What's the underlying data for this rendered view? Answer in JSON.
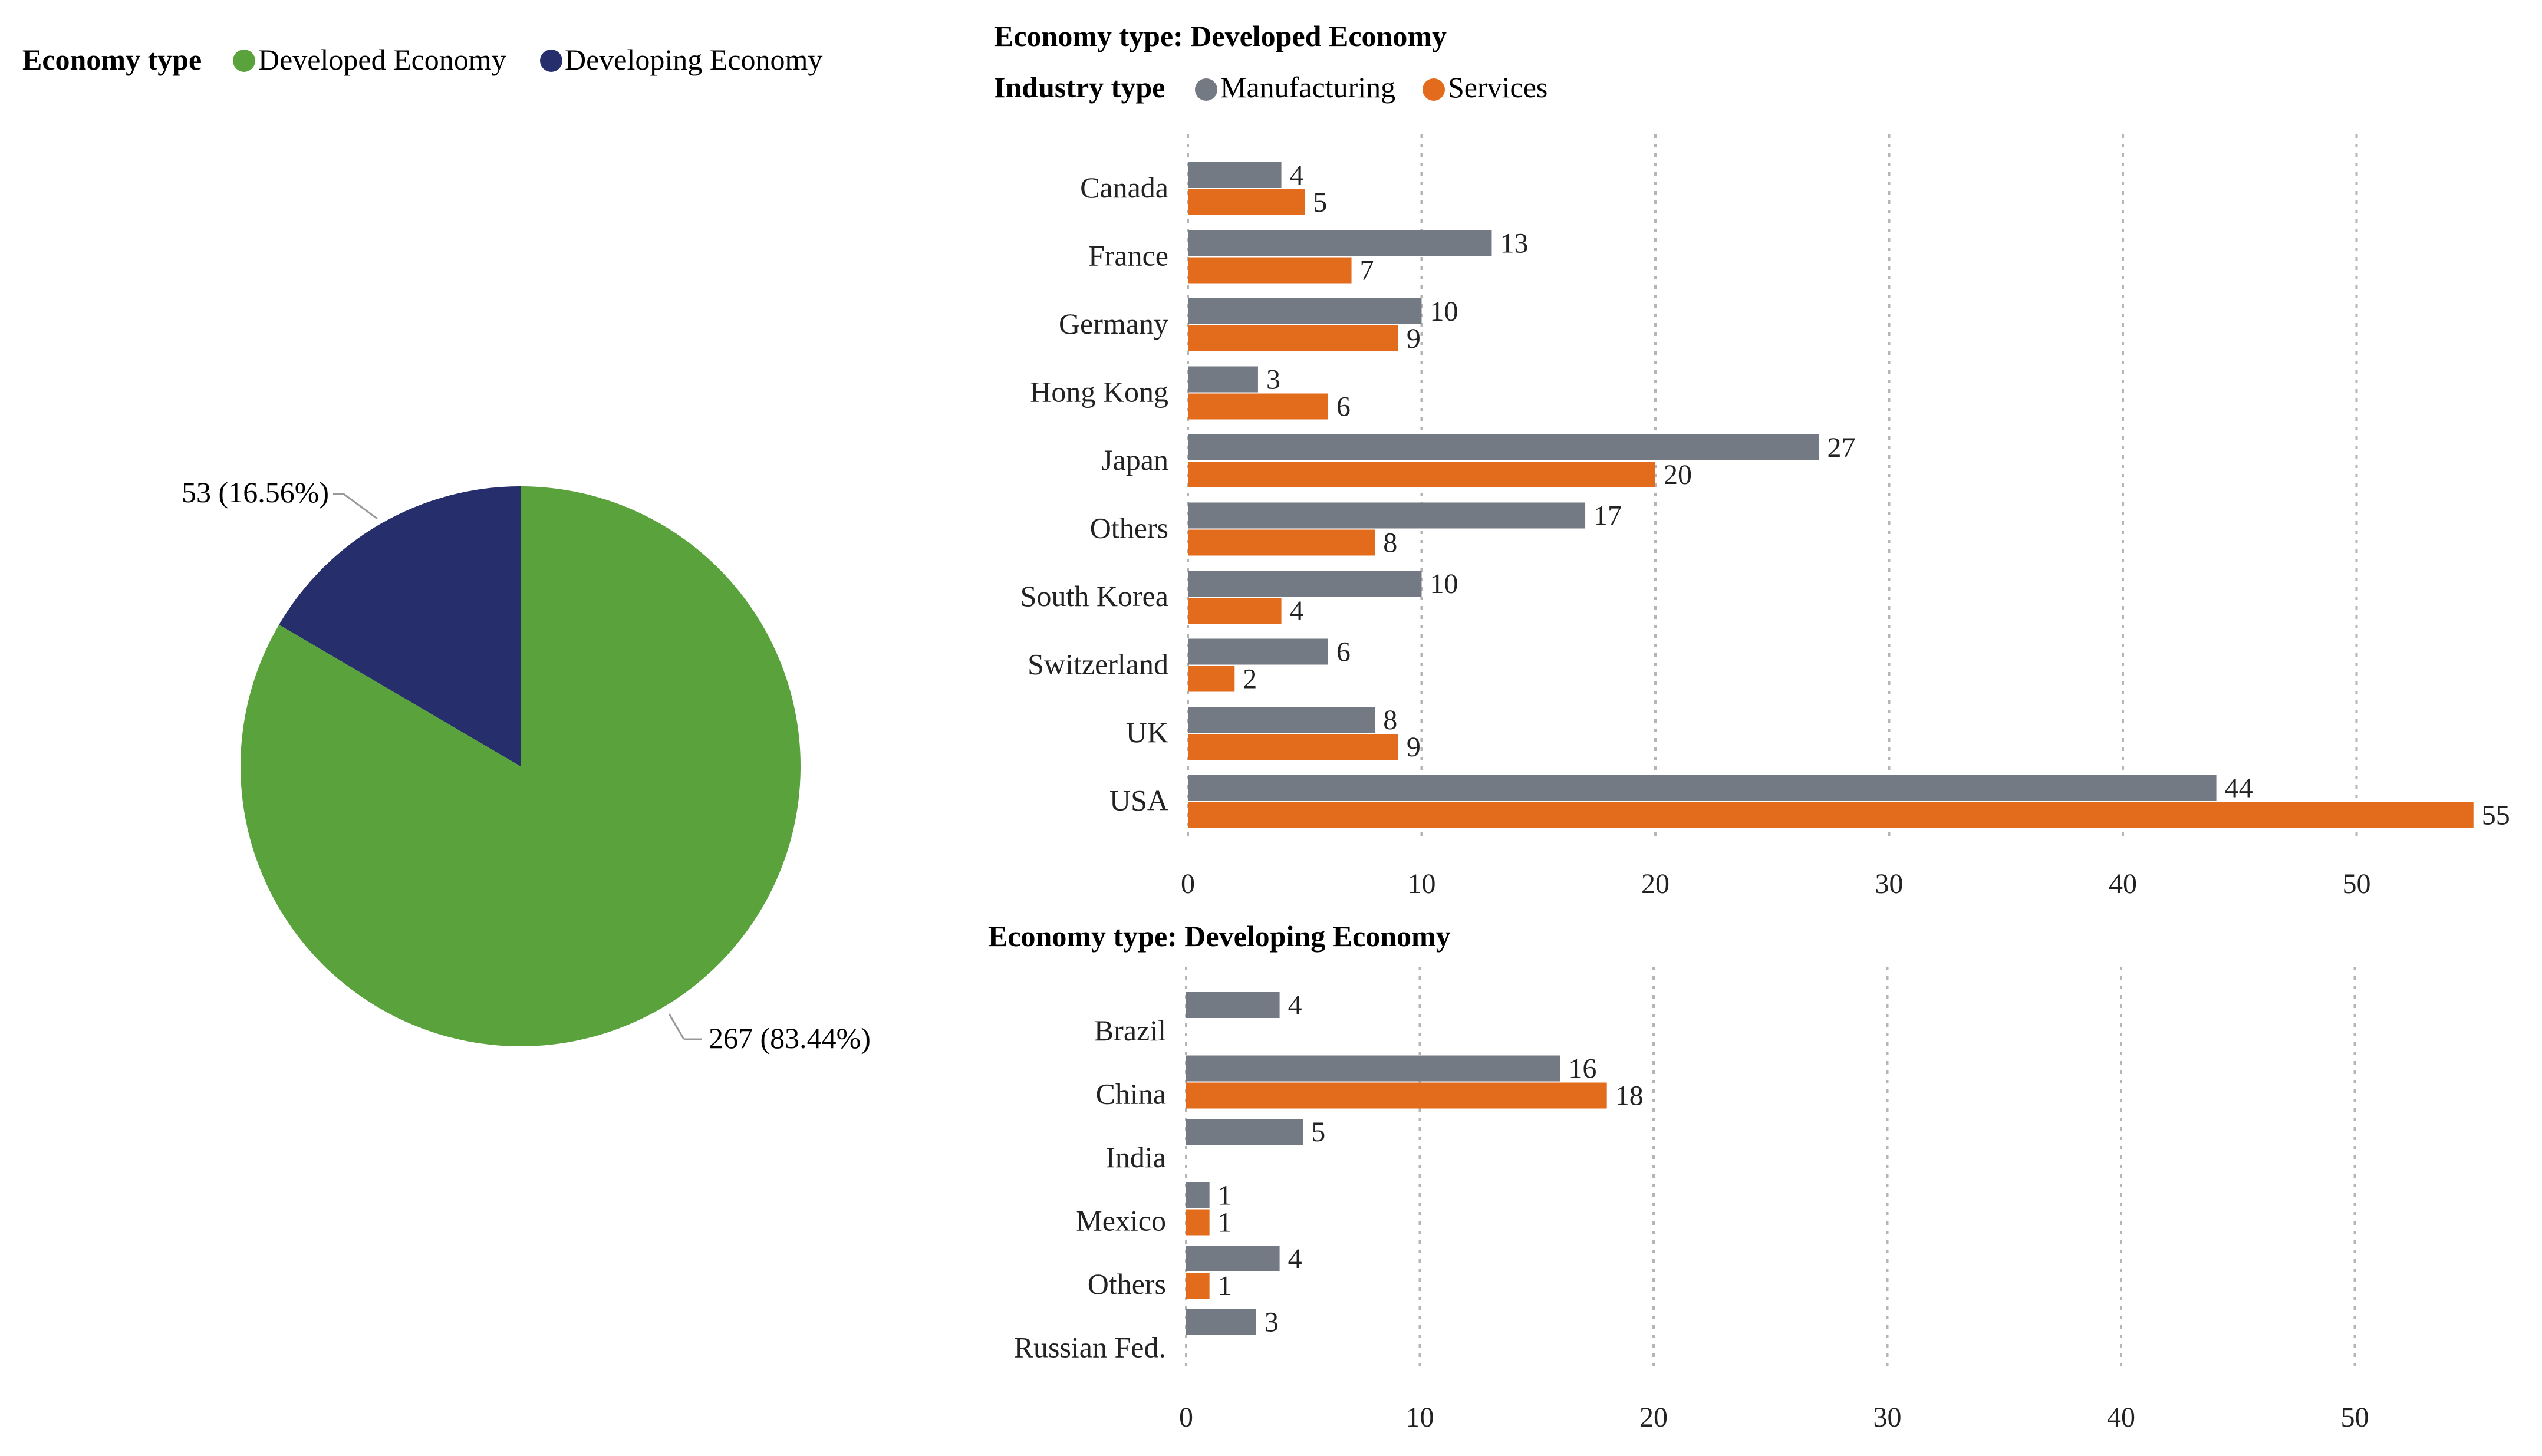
{
  "colors": {
    "developed": "#59a23c",
    "developing": "#262e6b",
    "manufacturing": "#747a83",
    "services": "#e36c1c",
    "grid": "#b5b5b5",
    "text": "#222222"
  },
  "pie": {
    "legend_title": "Economy type",
    "legend_items": [
      "Developed Economy",
      "Developing Economy"
    ],
    "labels": [
      "267 (83.44%)",
      "53 (16.56%)"
    ]
  },
  "developed_panel": {
    "title": "Economy type: Developed Economy",
    "legend_title": "Industry type",
    "legend_items": [
      "Manufacturing",
      "Services"
    ]
  },
  "developing_panel": {
    "title": "Economy type: Developing Economy"
  },
  "chart_data": [
    {
      "type": "pie",
      "legend_title": "Economy type",
      "categories": [
        "Developed Economy",
        "Developing Economy"
      ],
      "values": [
        267,
        53
      ],
      "percentages": [
        83.44,
        16.56
      ],
      "legend_position": "top-left"
    },
    {
      "type": "bar",
      "orientation": "horizontal",
      "title": "Economy type: Developed Economy",
      "legend_title": "Industry type",
      "categories": [
        "Canada",
        "France",
        "Germany",
        "Hong Kong",
        "Japan",
        "Others",
        "South Korea",
        "Switzerland",
        "UK",
        "USA"
      ],
      "series": [
        {
          "name": "Manufacturing",
          "values": [
            4,
            13,
            10,
            3,
            27,
            17,
            10,
            6,
            8,
            44
          ]
        },
        {
          "name": "Services",
          "values": [
            5,
            7,
            9,
            6,
            20,
            8,
            4,
            2,
            9,
            55
          ]
        }
      ],
      "xlim": [
        0,
        57
      ],
      "xticks": [
        0,
        10,
        20,
        30,
        40,
        50
      ],
      "grid": "vertical dotted",
      "legend_position": "top-left"
    },
    {
      "type": "bar",
      "orientation": "horizontal",
      "title": "Economy type: Developing Economy",
      "categories": [
        "Brazil",
        "China",
        "India",
        "Mexico",
        "Others",
        "Russian Fed."
      ],
      "series": [
        {
          "name": "Manufacturing",
          "values": [
            4,
            16,
            5,
            1,
            4,
            3
          ]
        },
        {
          "name": "Services",
          "values": [
            null,
            18,
            null,
            1,
            1,
            null
          ]
        }
      ],
      "xlim": [
        0,
        57
      ],
      "xticks": [
        0,
        10,
        20,
        30,
        40,
        50
      ],
      "grid": "vertical dotted"
    }
  ]
}
